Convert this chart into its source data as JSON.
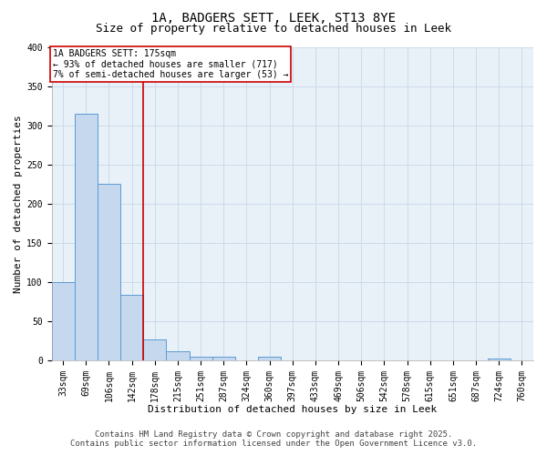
{
  "title_line1": "1A, BADGERS SETT, LEEK, ST13 8YE",
  "title_line2": "Size of property relative to detached houses in Leek",
  "xlabel": "Distribution of detached houses by size in Leek",
  "ylabel": "Number of detached properties",
  "categories": [
    "33sqm",
    "69sqm",
    "106sqm",
    "142sqm",
    "178sqm",
    "215sqm",
    "251sqm",
    "287sqm",
    "324sqm",
    "360sqm",
    "397sqm",
    "433sqm",
    "469sqm",
    "506sqm",
    "542sqm",
    "578sqm",
    "615sqm",
    "651sqm",
    "687sqm",
    "724sqm",
    "760sqm"
  ],
  "bar_values": [
    100,
    315,
    225,
    83,
    27,
    11,
    5,
    4,
    0,
    5,
    0,
    0,
    0,
    0,
    0,
    0,
    0,
    0,
    0,
    2,
    0
  ],
  "bar_color": "#c5d8ed",
  "bar_edge_color": "#5b9bd5",
  "grid_color": "#c8d8e8",
  "background_color": "#e8f0f8",
  "red_line_index": 4,
  "annotation_line1": "1A BADGERS SETT: 175sqm",
  "annotation_line2": "← 93% of detached houses are smaller (717)",
  "annotation_line3": "7% of semi-detached houses are larger (53) →",
  "annotation_box_color": "#ffffff",
  "annotation_border_color": "#cc0000",
  "ylim": [
    0,
    400
  ],
  "yticks": [
    0,
    50,
    100,
    150,
    200,
    250,
    300,
    350,
    400
  ],
  "footer_line1": "Contains HM Land Registry data © Crown copyright and database right 2025.",
  "footer_line2": "Contains public sector information licensed under the Open Government Licence v3.0.",
  "title_fontsize": 10,
  "subtitle_fontsize": 9,
  "axis_label_fontsize": 8,
  "tick_fontsize": 7,
  "annotation_fontsize": 7,
  "footer_fontsize": 6.5
}
